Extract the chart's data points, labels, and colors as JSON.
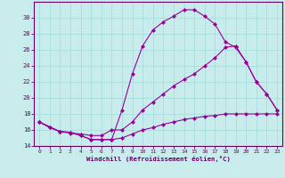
{
  "xlabel": "Windchill (Refroidissement éolien,°C)",
  "bg_color": "#c8ecec",
  "line_color": "#990099",
  "grid_color": "#aadddd",
  "axis_color": "#660066",
  "xlim": [
    -0.5,
    23.5
  ],
  "ylim": [
    14,
    32
  ],
  "xticks": [
    0,
    1,
    2,
    3,
    4,
    5,
    6,
    7,
    8,
    9,
    10,
    11,
    12,
    13,
    14,
    15,
    16,
    17,
    18,
    19,
    20,
    21,
    22,
    23
  ],
  "yticks": [
    14,
    16,
    18,
    20,
    22,
    24,
    26,
    28,
    30
  ],
  "line1_x": [
    0,
    1,
    2,
    3,
    4,
    5,
    6,
    7,
    8,
    9,
    10,
    11,
    12,
    13,
    14,
    15,
    16,
    17,
    18,
    19,
    20,
    21,
    22,
    23
  ],
  "line1_y": [
    17.0,
    16.3,
    15.8,
    15.7,
    15.3,
    14.8,
    14.8,
    14.8,
    18.5,
    23.0,
    26.5,
    28.5,
    29.5,
    30.2,
    31.0,
    31.0,
    30.2,
    29.2,
    27.0,
    26.3,
    24.5,
    22.0,
    20.5,
    18.5
  ],
  "line2_x": [
    0,
    2,
    3,
    4,
    5,
    6,
    7,
    8,
    9,
    10,
    11,
    12,
    13,
    14,
    15,
    16,
    17,
    18,
    19,
    20,
    21,
    22,
    23
  ],
  "line2_y": [
    17.0,
    15.8,
    15.6,
    15.5,
    15.3,
    15.3,
    16.0,
    16.0,
    17.0,
    18.5,
    19.5,
    20.5,
    21.5,
    22.3,
    23.0,
    24.0,
    25.0,
    26.3,
    26.5,
    24.5,
    22.0,
    20.5,
    18.5
  ],
  "line3_x": [
    0,
    1,
    2,
    3,
    4,
    5,
    6,
    7,
    8,
    9,
    10,
    11,
    12,
    13,
    14,
    15,
    16,
    17,
    18,
    19,
    20,
    21,
    22,
    23
  ],
  "line3_y": [
    17.0,
    16.3,
    15.8,
    15.7,
    15.3,
    14.8,
    14.8,
    14.8,
    15.0,
    15.5,
    16.0,
    16.3,
    16.7,
    17.0,
    17.3,
    17.5,
    17.7,
    17.8,
    18.0,
    18.0,
    18.0,
    18.0,
    18.0,
    18.0
  ]
}
